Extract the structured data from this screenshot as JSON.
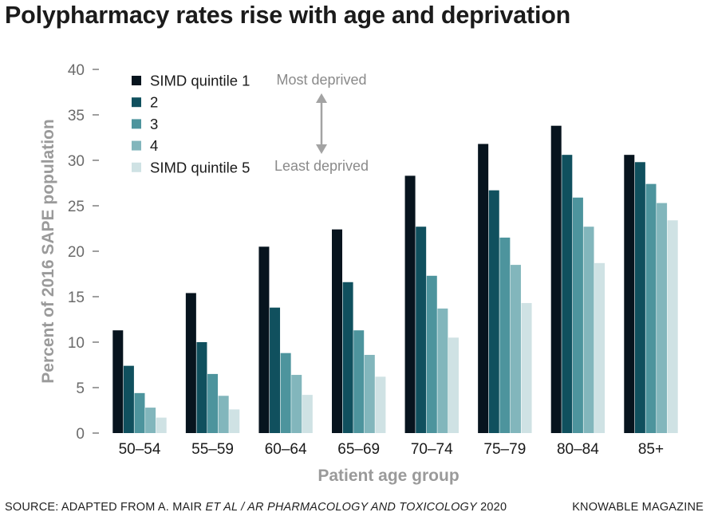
{
  "chart_data": {
    "type": "bar",
    "title": "Polypharmacy rates rise with age and deprivation",
    "xlabel": "Patient age group",
    "ylabel": "Percent of 2016 SAPE population",
    "ylim": [
      0,
      40
    ],
    "yticks": [
      0,
      5,
      10,
      15,
      20,
      25,
      30,
      35,
      40
    ],
    "grid": false,
    "legend_position": "top-left",
    "categories": [
      "50–54",
      "55–59",
      "60–64",
      "65–69",
      "70–74",
      "75–79",
      "80–84",
      "85+"
    ],
    "series": [
      {
        "name": "SIMD quintile 1",
        "color": "#07141e",
        "values": [
          11.3,
          15.4,
          20.5,
          22.4,
          28.3,
          31.8,
          33.8,
          30.6
        ]
      },
      {
        "name": "2",
        "color": "#10505e",
        "values": [
          7.4,
          10.0,
          13.8,
          16.6,
          22.7,
          26.7,
          30.6,
          29.8
        ]
      },
      {
        "name": "3",
        "color": "#4d949d",
        "values": [
          4.4,
          6.5,
          8.8,
          11.3,
          17.3,
          21.5,
          25.9,
          27.4
        ]
      },
      {
        "name": "4",
        "color": "#82b6bc",
        "values": [
          2.8,
          4.1,
          6.4,
          8.6,
          13.7,
          18.5,
          22.7,
          25.3
        ]
      },
      {
        "name": "SIMD quintile 5",
        "color": "#cfe2e4",
        "values": [
          1.7,
          2.6,
          4.2,
          6.2,
          10.5,
          14.3,
          18.7,
          23.4
        ]
      }
    ],
    "annotations": {
      "top": "Most deprived",
      "bottom": "Least deprived"
    }
  },
  "colors": {
    "axis_text": "#6b6b6b",
    "axis_label": "#9a9a9a",
    "category_text": "#1a1a1a",
    "annotation_text": "#8a8a8a",
    "arrow": "#a3a3a3"
  },
  "footer": {
    "source_prefix": "SOURCE: ADAPTED FROM A. MAIR ",
    "source_italic": "ET AL / AR PHARMACOLOGY AND TOXICOLOGY",
    "source_suffix": " 2020",
    "brand": "KNOWABLE MAGAZINE"
  }
}
